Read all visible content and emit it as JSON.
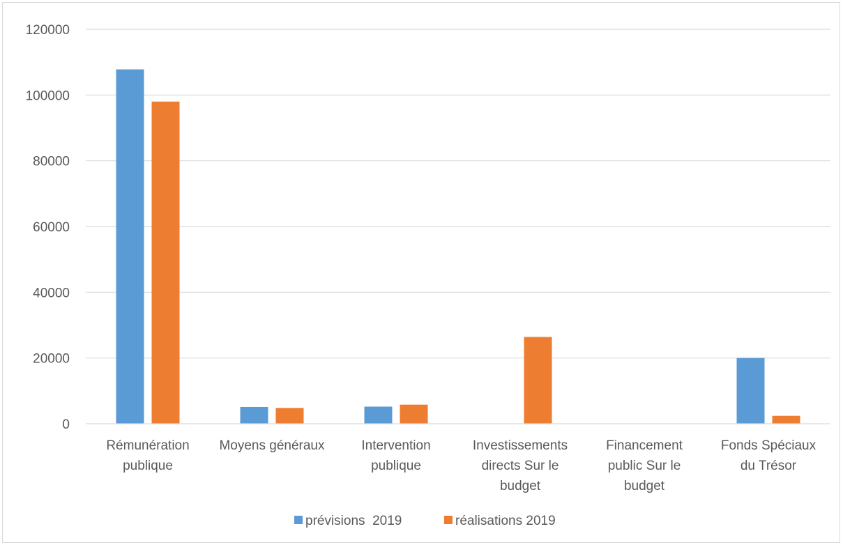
{
  "chart_data": {
    "type": "bar",
    "categories": [
      [
        "Rémunération",
        "publique"
      ],
      [
        "Moyens généraux"
      ],
      [
        "Intervention",
        "publique"
      ],
      [
        "Investissements",
        "directs Sur le",
        "budget"
      ],
      [
        "Financement",
        "public Sur le",
        "budget"
      ],
      [
        "Fonds Spéciaux",
        "du Trésor"
      ]
    ],
    "series": [
      {
        "name": "prévisions  2019",
        "color": "#5b9bd5",
        "values": [
          107800,
          5100,
          5200,
          0,
          0,
          20000
        ]
      },
      {
        "name": "réalisations 2019",
        "color": "#ed7d31",
        "values": [
          98000,
          4800,
          5800,
          26400,
          0,
          2400
        ]
      }
    ],
    "ylim": [
      0,
      120000
    ],
    "yticks": [
      "0",
      "20000",
      "40000",
      "60000",
      "80000",
      "100000",
      "120000"
    ],
    "grid": true,
    "legend_position": "bottom"
  }
}
